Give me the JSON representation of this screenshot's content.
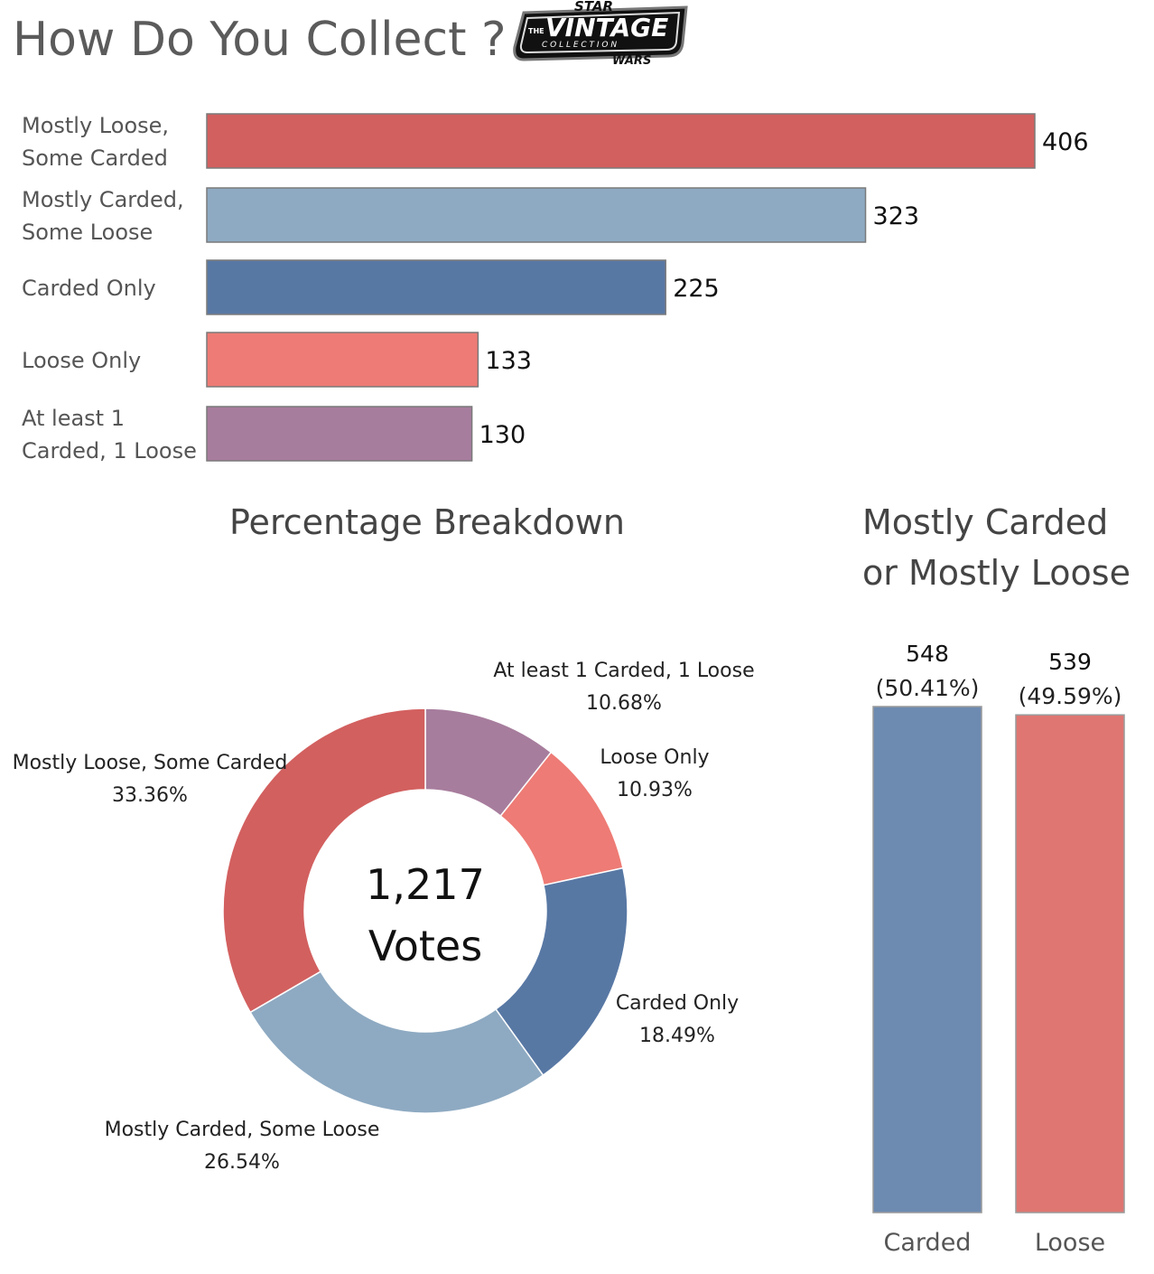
{
  "title": "How Do You Collect ?",
  "logo": {
    "top": "STAR",
    "main": "VINTAGE",
    "the": "THE",
    "sub": "C O L L E C T I O N",
    "bottom": "WARS"
  },
  "colors": {
    "mostly_loose": "#d2605f",
    "mostly_carded": "#8eaac2",
    "carded_only": "#5878a4",
    "loose_only": "#ee7b75",
    "both": "#a77d9d",
    "carded_total": "#6d8ab0",
    "loose_total": "#df7672"
  },
  "chart_data": [
    {
      "type": "bar",
      "orientation": "horizontal",
      "title": "How Do You Collect ?",
      "categories": [
        [
          "Mostly Loose,",
          "Some Carded"
        ],
        [
          "Mostly Carded,",
          "Some Loose"
        ],
        [
          "Carded Only"
        ],
        [
          "Loose Only"
        ],
        [
          "At least 1",
          "Carded, 1 Loose"
        ]
      ],
      "values": [
        406,
        323,
        225,
        133,
        130
      ],
      "value_labels": [
        "406",
        "323",
        "225",
        "133",
        "130"
      ],
      "color_keys": [
        "mostly_loose",
        "mostly_carded",
        "carded_only",
        "loose_only",
        "both"
      ],
      "xlim": [
        0,
        406
      ]
    },
    {
      "type": "pie",
      "donut": true,
      "title": "Percentage Breakdown",
      "center_value": "1,217",
      "center_label": "Votes",
      "slices": [
        {
          "label": "At least 1 Carded, 1 Loose",
          "value": 10.68,
          "pct": "10.68%",
          "color_key": "both"
        },
        {
          "label": "Loose Only",
          "value": 10.93,
          "pct": "10.93%",
          "color_key": "loose_only"
        },
        {
          "label": "Carded Only",
          "value": 18.49,
          "pct": "18.49%",
          "color_key": "carded_only"
        },
        {
          "label": "Mostly Carded, Some Loose",
          "value": 26.54,
          "pct": "26.54%",
          "color_key": "mostly_carded"
        },
        {
          "label": "Mostly Loose, Some Carded",
          "value": 33.36,
          "pct": "33.36%",
          "color_key": "mostly_loose"
        }
      ]
    },
    {
      "type": "bar",
      "orientation": "vertical",
      "title": [
        "Mostly Carded",
        "or Mostly Loose"
      ],
      "categories": [
        "Carded",
        "Loose"
      ],
      "values": [
        548,
        539
      ],
      "value_labels": [
        "548",
        "539"
      ],
      "pct_labels": [
        "(50.41%)",
        "(49.59%)"
      ],
      "color_keys": [
        "carded_total",
        "loose_total"
      ],
      "ylim": [
        0,
        548
      ]
    }
  ]
}
